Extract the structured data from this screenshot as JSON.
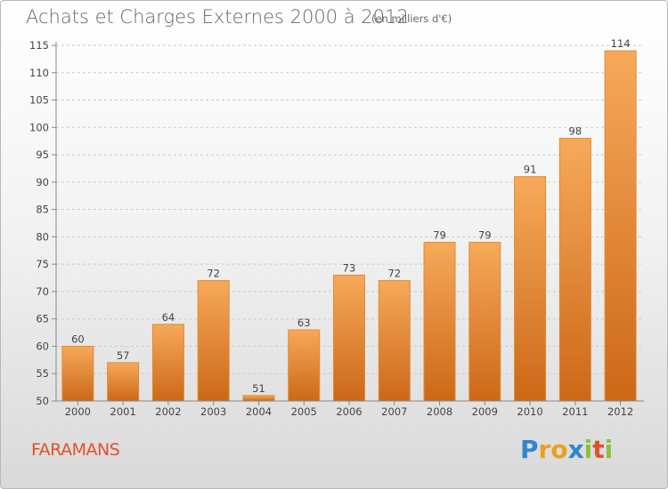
{
  "header": {
    "title": "Achats et Charges Externes 2000 à 2012",
    "unit": "(en milliers d'€)"
  },
  "footer": {
    "commune": "FARAMANS",
    "logo_letters": [
      {
        "char": "P",
        "color": "#2e86d1"
      },
      {
        "char": "r",
        "color": "#e8a020"
      },
      {
        "char": "o",
        "color": "#e8a020"
      },
      {
        "char": "x",
        "color": "#2e86d1"
      },
      {
        "char": "i",
        "color": "#8ac13d"
      },
      {
        "char": "t",
        "color": "#e2502a"
      },
      {
        "char": "i",
        "color": "#8ac13d"
      }
    ]
  },
  "chart_data": {
    "type": "bar",
    "title": "Achats et Charges Externes 2000 à 2012",
    "unit": "(en milliers d'€)",
    "categories": [
      "2000",
      "2001",
      "2002",
      "2003",
      "2004",
      "2005",
      "2006",
      "2007",
      "2008",
      "2009",
      "2010",
      "2011",
      "2012"
    ],
    "values": [
      60,
      57,
      64,
      72,
      51,
      63,
      73,
      72,
      79,
      79,
      91,
      98,
      114
    ],
    "ylim": [
      50,
      115
    ],
    "yticks": [
      50,
      55,
      60,
      65,
      70,
      75,
      80,
      85,
      90,
      95,
      100,
      105,
      110,
      115
    ],
    "grid": "horizontal dashed",
    "colors": {
      "bar_light": "#f7a95a",
      "bar_dark": "#cc6818",
      "bar_edge": "#e08a35"
    }
  }
}
